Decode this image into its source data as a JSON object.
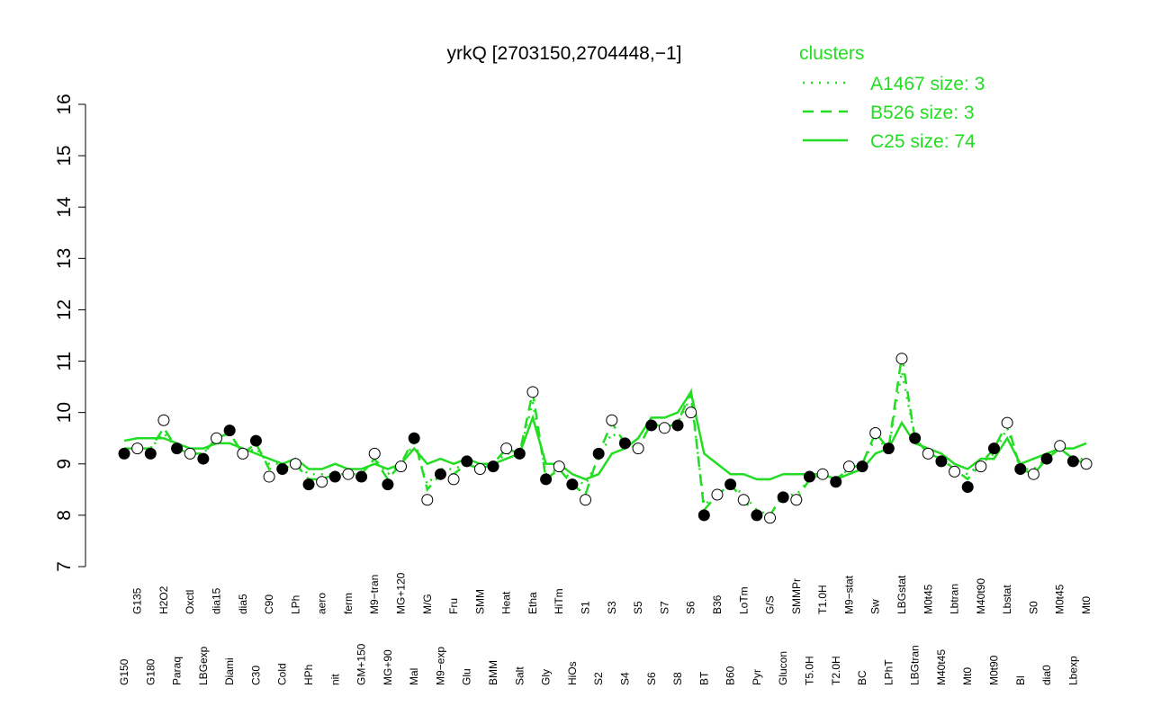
{
  "chart_data": {
    "type": "line",
    "title": "yrkQ [2703150,2704448,−1]",
    "legend_title": "clusters",
    "legend_position": "top-right",
    "ylim": [
      7,
      16
    ],
    "yticks": [
      7,
      8,
      9,
      10,
      11,
      12,
      13,
      14,
      15,
      16
    ],
    "categories": [
      "G150",
      "G135",
      "G180",
      "H2O2",
      "Paraq",
      "Oxctl",
      "LBGexp",
      "dia15",
      "Diami",
      "dia5",
      "C30",
      "C90",
      "Cold",
      "LPh",
      "HPh",
      "aero",
      "nit",
      "ferm",
      "GM+150",
      "M9−tran",
      "MG+90",
      "MG+120",
      "Mal",
      "M/G",
      "M9−exp",
      "Fru",
      "Glu",
      "SMM",
      "BMM",
      "Heat",
      "Salt",
      "Etha",
      "Gly",
      "HiTm",
      "HiOs",
      "S1",
      "S2",
      "S3",
      "S4",
      "S5",
      "S6",
      "S7",
      "S8",
      "S6",
      "BT",
      "B36",
      "B60",
      "LoTm",
      "Pyr",
      "G/S",
      "Glucon",
      "SMMPr",
      "T5.0H",
      "T1.0H",
      "T2.0H",
      "M9−stat",
      "BC",
      "Sw",
      "LPhT",
      "LBGstat",
      "LBGtran",
      "M0t45",
      "M40t45",
      "Lbtran",
      "Mt0",
      "M40t90",
      "M0t90",
      "Lbstat",
      "Bl",
      "S0",
      "dia0",
      "M0t45",
      "Lbexp",
      "Mt0"
    ],
    "values": [
      9.2,
      9.3,
      9.2,
      9.85,
      9.3,
      9.2,
      9.1,
      9.5,
      9.65,
      9.2,
      9.45,
      8.75,
      8.9,
      9.0,
      8.6,
      8.65,
      8.75,
      8.8,
      8.75,
      9.2,
      8.6,
      8.95,
      9.5,
      8.3,
      8.8,
      8.7,
      9.05,
      8.9,
      8.95,
      9.3,
      9.2,
      10.4,
      8.7,
      8.95,
      8.6,
      8.3,
      9.2,
      9.85,
      9.4,
      9.3,
      9.75,
      9.7,
      9.75,
      10.0,
      8.0,
      8.4,
      8.6,
      8.3,
      8.0,
      7.95,
      8.35,
      8.3,
      8.75,
      8.8,
      8.65,
      8.95,
      8.95,
      9.6,
      9.3,
      11.05,
      9.5,
      9.2,
      9.05,
      8.85,
      8.55,
      8.95,
      9.3,
      9.8,
      8.9,
      8.8,
      9.1,
      9.35,
      9.05,
      9.0
    ],
    "series": [
      {
        "name": "A1467 size: 3",
        "color": "#22dd22",
        "dash": "dotted",
        "values": [
          9.3,
          9.3,
          9.3,
          9.6,
          9.3,
          9.2,
          9.2,
          9.5,
          9.6,
          9.2,
          9.3,
          9.0,
          9.0,
          9.0,
          8.8,
          8.8,
          8.8,
          8.8,
          8.8,
          9.1,
          8.8,
          9.0,
          9.4,
          8.6,
          8.9,
          8.9,
          9.0,
          8.9,
          9.0,
          9.2,
          9.2,
          10.2,
          8.8,
          8.9,
          8.7,
          8.6,
          9.1,
          9.6,
          9.4,
          9.3,
          9.8,
          9.7,
          9.8,
          10.3,
          8.2,
          8.4,
          8.6,
          8.4,
          8.1,
          8.0,
          8.4,
          8.4,
          8.7,
          8.8,
          8.7,
          8.9,
          9.0,
          9.5,
          9.3,
          10.8,
          9.5,
          9.2,
          9.1,
          8.9,
          8.8,
          9.0,
          9.2,
          9.7,
          8.9,
          8.9,
          9.1,
          9.3,
          9.1,
          9.1
        ]
      },
      {
        "name": "B526 size: 3",
        "color": "#22dd22",
        "dash": "dashed",
        "values": [
          9.3,
          9.3,
          9.3,
          9.7,
          9.3,
          9.2,
          9.2,
          9.5,
          9.6,
          9.2,
          9.4,
          8.9,
          8.9,
          9.0,
          8.7,
          8.7,
          8.8,
          8.8,
          8.8,
          9.1,
          8.7,
          9.0,
          9.5,
          8.5,
          8.8,
          8.8,
          9.0,
          8.9,
          9.0,
          9.3,
          9.2,
          10.4,
          8.7,
          8.9,
          8.6,
          8.4,
          9.2,
          9.8,
          9.4,
          9.3,
          9.8,
          9.7,
          9.8,
          10.4,
          8.1,
          8.4,
          8.6,
          8.3,
          8.0,
          8.0,
          8.4,
          8.3,
          8.7,
          8.8,
          8.7,
          8.9,
          9.0,
          9.6,
          9.3,
          11.1,
          9.5,
          9.2,
          9.1,
          8.9,
          8.7,
          9.0,
          9.3,
          9.8,
          8.9,
          8.8,
          9.1,
          9.3,
          9.1,
          9.0
        ]
      },
      {
        "name": "C25 size: 74",
        "color": "#22dd22",
        "dash": "solid",
        "values": [
          9.45,
          9.5,
          9.5,
          9.5,
          9.4,
          9.3,
          9.3,
          9.4,
          9.4,
          9.3,
          9.2,
          9.1,
          9.0,
          9.1,
          8.9,
          8.9,
          9.0,
          8.9,
          8.9,
          9.0,
          8.9,
          9.0,
          9.3,
          9.0,
          9.1,
          9.0,
          9.1,
          9.0,
          9.0,
          9.1,
          9.2,
          9.9,
          9.0,
          9.0,
          8.8,
          8.7,
          8.8,
          9.2,
          9.3,
          9.5,
          9.9,
          9.9,
          10.0,
          10.4,
          9.2,
          9.0,
          8.8,
          8.8,
          8.7,
          8.7,
          8.8,
          8.8,
          8.8,
          8.8,
          8.7,
          8.8,
          8.9,
          9.2,
          9.3,
          9.8,
          9.4,
          9.3,
          9.2,
          9.0,
          8.9,
          9.1,
          9.1,
          9.5,
          9.0,
          9.1,
          9.2,
          9.3,
          9.3,
          9.4
        ]
      }
    ]
  }
}
